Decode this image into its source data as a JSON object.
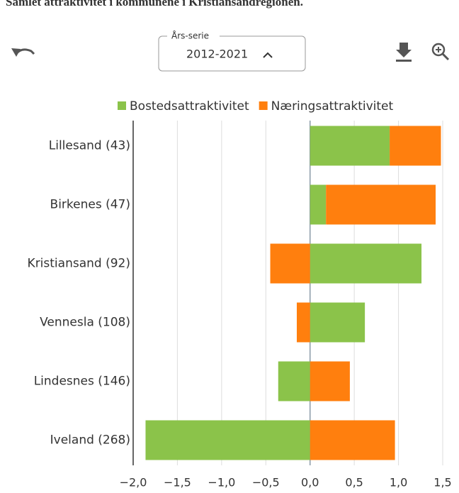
{
  "chart_data": {
    "type": "bar",
    "orientation": "horizontal",
    "stacked": true,
    "title": "Samlet attraktivitet i kommunene i Kristiansandregionen.",
    "controls": {
      "series_label": "Års-serie",
      "series_value": "2012-2021"
    },
    "categories": [
      "Lillesand (43)",
      "Birkenes (47)",
      "Kristiansand (92)",
      "Vennesla (108)",
      "Lindesnes (146)",
      "Iveland (268)"
    ],
    "series": [
      {
        "name": "Bostedsattraktivitet",
        "color": "#8bc34a",
        "values": [
          0.9,
          0.18,
          1.26,
          0.62,
          -0.36,
          -1.86
        ]
      },
      {
        "name": "Næringsattraktivitet",
        "color": "#ff7f0e",
        "values": [
          0.58,
          1.24,
          -0.45,
          -0.15,
          0.45,
          0.96
        ]
      }
    ],
    "xlim": [
      -2.0,
      1.5
    ],
    "xticks": [
      {
        "value": -2.0,
        "label": "−2,0"
      },
      {
        "value": -1.5,
        "label": "−1,5"
      },
      {
        "value": -1.0,
        "label": "−1,0"
      },
      {
        "value": -0.5,
        "label": "−0,5"
      },
      {
        "value": 0,
        "label": "0,0"
      },
      {
        "value": 0.5,
        "label": "0,5"
      },
      {
        "value": 1.0,
        "label": "1,0"
      },
      {
        "value": 1.5,
        "label": "1,5"
      }
    ],
    "grid": true,
    "legend": "top"
  }
}
